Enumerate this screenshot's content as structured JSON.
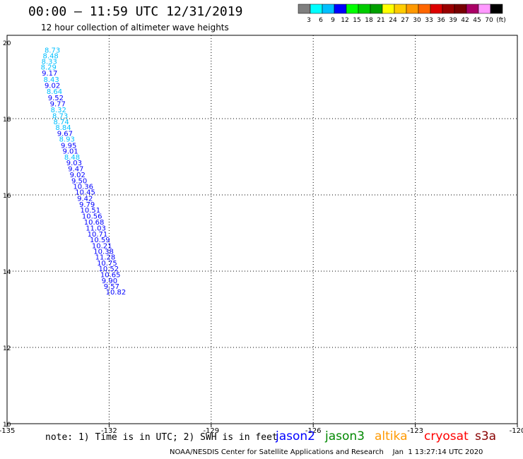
{
  "header": {
    "title": "00:00 – 11:59 UTC 12/31/2019",
    "subtitle": "12 hour collection of altimeter wave heights"
  },
  "footer": {
    "note": "note: 1) Time is in UTC; 2) SWH is in feet",
    "credit": "NOAA/NESDIS Center for Satellite Applications and Research    Jan  1 13:27:14 UTC 2020"
  },
  "satellites": [
    {
      "name": "jason2",
      "color": "#0000ff"
    },
    {
      "name": "jason3",
      "color": "#008800"
    },
    {
      "name": "altika",
      "color": "#ff9900"
    },
    {
      "name": "cryosat",
      "color": "#ff0000"
    },
    {
      "name": "s3a",
      "color": "#880000"
    }
  ],
  "colorbar": {
    "labels": [
      "3",
      "6",
      "9",
      "12",
      "15",
      "18",
      "21",
      "24",
      "27",
      "30",
      "33",
      "36",
      "39",
      "42",
      "45",
      "70",
      "(ft)"
    ],
    "colors": [
      "#7f7f7f",
      "#00ffff",
      "#00bfff",
      "#0000ff",
      "#00ff00",
      "#00cc00",
      "#00a000",
      "#ffff00",
      "#ffcc00",
      "#ff9900",
      "#ff6600",
      "#dd0000",
      "#990000",
      "#770000",
      "#aa0066",
      "#ff99ff",
      "#000000"
    ]
  },
  "chart_data": {
    "type": "scatter",
    "title": "00:00 – 11:59 UTC 12/31/2019",
    "subtitle": "12 hour collection of altimeter wave heights",
    "xlabel": "",
    "ylabel": "",
    "xlim": [
      -135,
      -120
    ],
    "ylim": [
      10,
      20
    ],
    "xticks": [
      "-135",
      "-132",
      "-129",
      "-126",
      "-123",
      "-120"
    ],
    "yticks": [
      "20",
      "18",
      "16",
      "14",
      "12",
      "10"
    ],
    "grid": true,
    "tracks": [
      {
        "name": "track-a",
        "points": [
          {
            "x": -133.9,
            "y": 19.81,
            "v": "8.73",
            "c": "#00bfff"
          },
          {
            "x": -133.95,
            "y": 19.66,
            "v": "8.48",
            "c": "#00bfff"
          },
          {
            "x": -133.99,
            "y": 19.51,
            "v": "8.33",
            "c": "#00bfff"
          },
          {
            "x": -134.01,
            "y": 19.36,
            "v": "8.29",
            "c": "#00bfff"
          },
          {
            "x": -133.98,
            "y": 19.2,
            "v": "9.17",
            "c": "#0000ff"
          },
          {
            "x": -133.93,
            "y": 19.04,
            "v": "8.43",
            "c": "#00bfff"
          },
          {
            "x": -133.9,
            "y": 18.88,
            "v": "9.02",
            "c": "#0000ff"
          },
          {
            "x": -133.84,
            "y": 18.72,
            "v": "8.64",
            "c": "#00bfff"
          },
          {
            "x": -133.8,
            "y": 18.56,
            "v": "9.52",
            "c": "#0000ff"
          },
          {
            "x": -133.74,
            "y": 18.4,
            "v": "9.77",
            "c": "#0000ff"
          },
          {
            "x": -133.72,
            "y": 18.24,
            "v": "8.32",
            "c": "#00bfff"
          },
          {
            "x": -133.67,
            "y": 18.08,
            "v": "8.73",
            "c": "#00bfff"
          },
          {
            "x": -133.64,
            "y": 17.93,
            "v": "8.74",
            "c": "#00bfff"
          },
          {
            "x": -133.58,
            "y": 17.78,
            "v": "8.84",
            "c": "#00bfff"
          },
          {
            "x": -133.53,
            "y": 17.62,
            "v": "9.67",
            "c": "#0000ff"
          },
          {
            "x": -133.47,
            "y": 17.47,
            "v": "8.93",
            "c": "#00bfff"
          },
          {
            "x": -133.42,
            "y": 17.31,
            "v": "9.95",
            "c": "#0000ff"
          },
          {
            "x": -133.37,
            "y": 17.16,
            "v": "9.01",
            "c": "#0000ff"
          },
          {
            "x": -133.32,
            "y": 17.0,
            "v": "8.48",
            "c": "#00bfff"
          },
          {
            "x": -133.26,
            "y": 16.85,
            "v": "9.03",
            "c": "#0000ff"
          },
          {
            "x": -133.21,
            "y": 16.69,
            "v": "9.47",
            "c": "#0000ff"
          },
          {
            "x": -133.16,
            "y": 16.54,
            "v": "9.02",
            "c": "#0000ff"
          },
          {
            "x": -133.11,
            "y": 16.38,
            "v": "9.50",
            "c": "#0000ff"
          },
          {
            "x": -133.06,
            "y": 16.23,
            "v": "10.36",
            "c": "#0000ff"
          },
          {
            "x": -133.0,
            "y": 16.08,
            "v": "10.45",
            "c": "#0000ff"
          },
          {
            "x": -132.94,
            "y": 15.92,
            "v": "9.42",
            "c": "#0000ff"
          },
          {
            "x": -132.88,
            "y": 15.76,
            "v": "9.79",
            "c": "#0000ff"
          },
          {
            "x": -132.85,
            "y": 15.61,
            "v": "10.51",
            "c": "#0000ff"
          },
          {
            "x": -132.8,
            "y": 15.45,
            "v": "10.56",
            "c": "#0000ff"
          },
          {
            "x": -132.74,
            "y": 15.3,
            "v": "10.68",
            "c": "#0000ff"
          },
          {
            "x": -132.69,
            "y": 15.14,
            "v": "11.03",
            "c": "#0000ff"
          },
          {
            "x": -132.64,
            "y": 14.98,
            "v": "10.71",
            "c": "#0000ff"
          },
          {
            "x": -132.57,
            "y": 14.83,
            "v": "10.59",
            "c": "#0000ff"
          },
          {
            "x": -132.51,
            "y": 14.68,
            "v": "10.21",
            "c": "#0000ff"
          },
          {
            "x": -132.46,
            "y": 14.53,
            "v": "10.38",
            "c": "#0000ff"
          },
          {
            "x": -132.41,
            "y": 14.38,
            "v": "11.28",
            "c": "#0000ff"
          },
          {
            "x": -132.36,
            "y": 14.22,
            "v": "10.75",
            "c": "#0000ff"
          },
          {
            "x": -132.31,
            "y": 14.07,
            "v": "10.52",
            "c": "#0000ff"
          },
          {
            "x": -132.26,
            "y": 13.92,
            "v": "10.65",
            "c": "#0000ff"
          },
          {
            "x": -132.22,
            "y": 13.76,
            "v": "9.90",
            "c": "#0000ff"
          },
          {
            "x": -132.16,
            "y": 13.61,
            "v": "9.57",
            "c": "#0000ff"
          },
          {
            "x": -132.1,
            "y": 13.46,
            "v": "10.82",
            "c": "#0000ff"
          }
        ]
      }
    ]
  }
}
